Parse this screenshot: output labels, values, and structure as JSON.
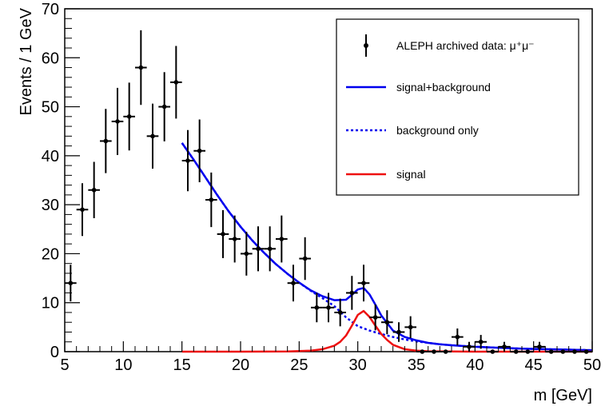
{
  "chart_data": {
    "type": "scatter",
    "xlabel": "m [GeV]",
    "ylabel": "Events / 1 GeV",
    "xlim": [
      5,
      50
    ],
    "ylim": [
      0,
      70
    ],
    "x_ticks": [
      5,
      10,
      15,
      20,
      25,
      30,
      35,
      40,
      45,
      50
    ],
    "y_ticks": [
      0,
      10,
      20,
      30,
      40,
      50,
      60,
      70
    ],
    "grid": false,
    "legend_position": "top-right",
    "legend": [
      {
        "label": "ALEPH archived data: μ⁺μ⁻",
        "style": "data-marker",
        "color": "#000000"
      },
      {
        "label": "signal+background",
        "style": "solid-line",
        "color": "#0000ee"
      },
      {
        "label": "background only",
        "style": "dotted-line",
        "color": "#0000ee"
      },
      {
        "label": "signal",
        "style": "solid-line",
        "color": "#ee1111"
      }
    ],
    "series": [
      {
        "name": "ALEPH archived data: μ⁺μ⁻",
        "kind": "points-with-errors",
        "color": "#000000",
        "x": [
          5.5,
          6.5,
          7.5,
          8.5,
          9.5,
          10.5,
          11.5,
          12.5,
          13.5,
          14.5,
          15.5,
          16.5,
          17.5,
          18.5,
          19.5,
          20.5,
          21.5,
          22.5,
          23.5,
          24.5,
          25.5,
          26.5,
          27.5,
          28.5,
          29.5,
          30.5,
          31.5,
          32.5,
          33.5,
          34.5,
          35.5,
          36.5,
          37.5,
          38.5,
          39.5,
          40.5,
          41.5,
          42.5,
          43.5,
          44.5,
          45.5,
          46.5,
          47.5,
          48.5,
          49.5
        ],
        "y": [
          14,
          29,
          33,
          43,
          47,
          48,
          58,
          44,
          50,
          55,
          39,
          41,
          31,
          24,
          23,
          20,
          21,
          21,
          23,
          14,
          19,
          9,
          9,
          8,
          12,
          14,
          7,
          6,
          4,
          5,
          0,
          0,
          0,
          3,
          1,
          2,
          0,
          1,
          0,
          0,
          1,
          0,
          0,
          0,
          0
        ],
        "x_error": 0.5
      },
      {
        "name": "signal+background",
        "kind": "curve",
        "color": "#0000ee",
        "x": [
          15,
          16,
          17,
          18,
          19,
          20,
          21,
          22,
          23,
          24,
          25,
          26,
          27,
          28,
          29,
          29.5,
          30,
          30.5,
          31,
          31.5,
          32,
          33,
          34,
          35,
          36,
          37,
          38,
          40,
          42,
          44,
          46,
          48,
          50
        ],
        "y": [
          42.6,
          39.2,
          35.6,
          32.0,
          28.6,
          25.5,
          22.7,
          20.2,
          17.9,
          15.9,
          14.1,
          12.5,
          11.3,
          10.5,
          10.6,
          11.6,
          12.7,
          13.0,
          11.7,
          9.6,
          7.4,
          4.3,
          3.0,
          2.3,
          1.8,
          1.5,
          1.3,
          1.0,
          0.8,
          0.6,
          0.5,
          0.4,
          0.3
        ]
      },
      {
        "name": "background only",
        "kind": "curve",
        "color": "#0000ee",
        "x": [
          15,
          16,
          17,
          18,
          19,
          20,
          21,
          22,
          23,
          24,
          25,
          26,
          27,
          28,
          29,
          30,
          31,
          32,
          33,
          34,
          35,
          36,
          37,
          38,
          40,
          42,
          44,
          46,
          48,
          50
        ],
        "y": [
          42.6,
          39.2,
          35.6,
          32.0,
          28.6,
          25.5,
          22.7,
          20.2,
          17.9,
          15.9,
          14.1,
          12.4,
          10.9,
          9.3,
          7.0,
          5.2,
          4.3,
          3.6,
          3.0,
          2.5,
          2.1,
          1.8,
          1.5,
          1.3,
          1.0,
          0.8,
          0.6,
          0.5,
          0.4,
          0.3
        ]
      },
      {
        "name": "signal",
        "kind": "curve",
        "color": "#ee1111",
        "x": [
          15,
          20,
          24,
          26,
          27,
          28,
          28.5,
          29,
          29.5,
          30,
          30.5,
          31,
          31.5,
          32,
          32.5,
          33,
          34,
          35,
          36,
          40,
          45,
          50
        ],
        "y": [
          0,
          0,
          0.05,
          0.2,
          0.5,
          1.2,
          2.0,
          3.3,
          5.3,
          7.5,
          8.3,
          7.1,
          5.3,
          3.6,
          2.4,
          1.4,
          0.5,
          0.2,
          0.08,
          0,
          0,
          0
        ]
      }
    ]
  }
}
